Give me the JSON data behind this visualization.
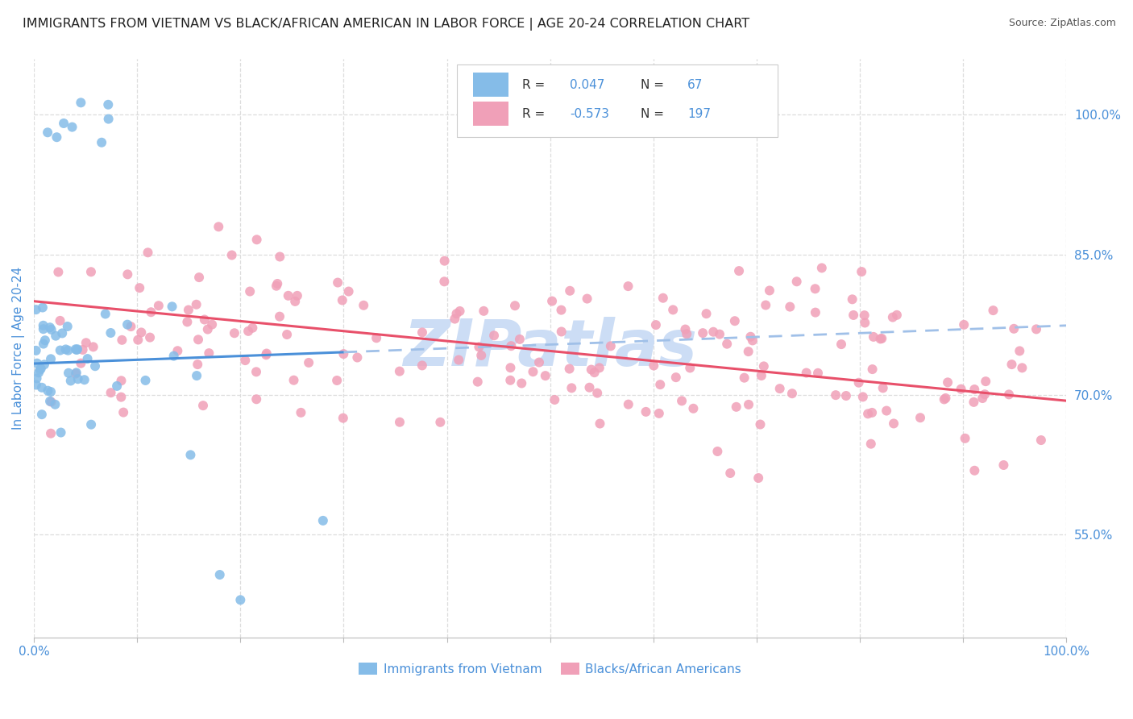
{
  "title": "IMMIGRANTS FROM VIETNAM VS BLACK/AFRICAN AMERICAN IN LABOR FORCE | AGE 20-24 CORRELATION CHART",
  "source": "Source: ZipAtlas.com",
  "ylabel": "In Labor Force | Age 20-24",
  "xlim": [
    0.0,
    1.0
  ],
  "ylim": [
    0.44,
    1.06
  ],
  "right_yticks": [
    1.0,
    0.85,
    0.7,
    0.55
  ],
  "right_yticklabels": [
    "100.0%",
    "85.0%",
    "70.0%",
    "55.0%"
  ],
  "r_vietnam": 0.047,
  "n_vietnam": 67,
  "r_black": -0.573,
  "n_black": 197,
  "color_vietnam": "#85bce8",
  "color_black": "#f0a0b8",
  "trendline_color_vietnam": "#4a90d9",
  "trendline_color_black": "#e8506a",
  "trendline_dashed_color": "#a0c0e8",
  "legend_label_vietnam": "Immigrants from Vietnam",
  "legend_label_black": "Blacks/African Americans",
  "background_color": "#ffffff",
  "grid_color": "#dddddd",
  "title_fontsize": 11.5,
  "tick_label_color": "#4a90d9",
  "watermark_text": "ZIPatlas",
  "watermark_color": "#ccddf5"
}
